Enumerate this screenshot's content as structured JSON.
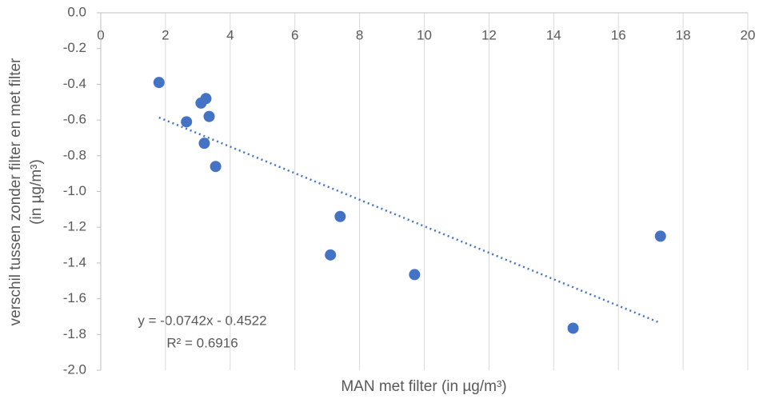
{
  "chart_data": {
    "type": "scatter",
    "xlabel": "MAN met filter (in µg/m³)",
    "ylabel": [
      "verschil tussen zonder filter en met filter",
      "(in µg/m³)"
    ],
    "x": [
      1.8,
      2.65,
      3.1,
      3.25,
      3.2,
      3.35,
      3.55,
      7.1,
      7.4,
      9.7,
      14.6,
      17.3
    ],
    "values": [
      -0.39,
      -0.61,
      -0.505,
      -0.48,
      -0.73,
      -0.58,
      -0.86,
      -1.355,
      -1.14,
      -1.465,
      -1.765,
      -1.25
    ],
    "color": "#4472c4",
    "trendline": {
      "x": [
        1.8,
        17.3
      ],
      "values": [
        -0.586,
        -1.736
      ],
      "color": "#4472c4"
    },
    "equation": "y = -0.0742x - 0.4522",
    "r_squared": "R² = 0.6916",
    "xlim": [
      0,
      20
    ],
    "xticks": [
      0,
      2,
      4,
      6,
      8,
      10,
      12,
      14,
      16,
      18,
      20
    ],
    "ylim": [
      -2,
      0
    ],
    "yticks": [
      {
        "value": 0,
        "label": "0.0"
      },
      {
        "value": -0.2,
        "label": "-0.2"
      },
      {
        "value": -0.4,
        "label": "-0.4"
      },
      {
        "value": -0.6,
        "label": "-0.6"
      },
      {
        "value": -0.8,
        "label": "-0.8"
      },
      {
        "value": -1,
        "label": "-1.0"
      },
      {
        "value": -1.2,
        "label": "-1.2"
      },
      {
        "value": -1.4,
        "label": "-1.4"
      },
      {
        "value": -1.6,
        "label": "-1.6"
      },
      {
        "value": -1.8,
        "label": "-1.8"
      },
      {
        "value": -2,
        "label": "-2.0"
      }
    ],
    "grid": "x"
  }
}
